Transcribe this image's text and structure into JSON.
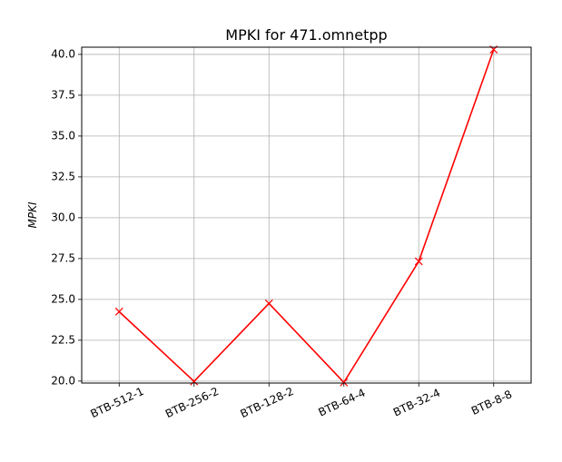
{
  "chart_data": {
    "type": "line",
    "title": "MPKI for 471.omnetpp",
    "xlabel": "",
    "ylabel": "MPKI",
    "categories": [
      "BTB-512-1",
      "BTB-256-2",
      "BTB-128-2",
      "BTB-64-4",
      "BTB-32-4",
      "BTB-8-8"
    ],
    "series": [
      {
        "values": [
          24.25,
          19.98,
          24.75,
          19.92,
          27.33,
          40.3
        ],
        "color": "#ff0000",
        "marker": "x"
      }
    ],
    "ylim": [
      19.88,
      40.44
    ],
    "yticks": [
      20.0,
      22.5,
      25.0,
      27.5,
      30.0,
      32.5,
      35.0,
      37.5,
      40.0
    ],
    "ytick_labels": [
      "20.0",
      "22.5",
      "25.0",
      "27.5",
      "30.0",
      "32.5",
      "35.0",
      "37.5",
      "40.0"
    ],
    "grid": true,
    "legend": "none"
  }
}
